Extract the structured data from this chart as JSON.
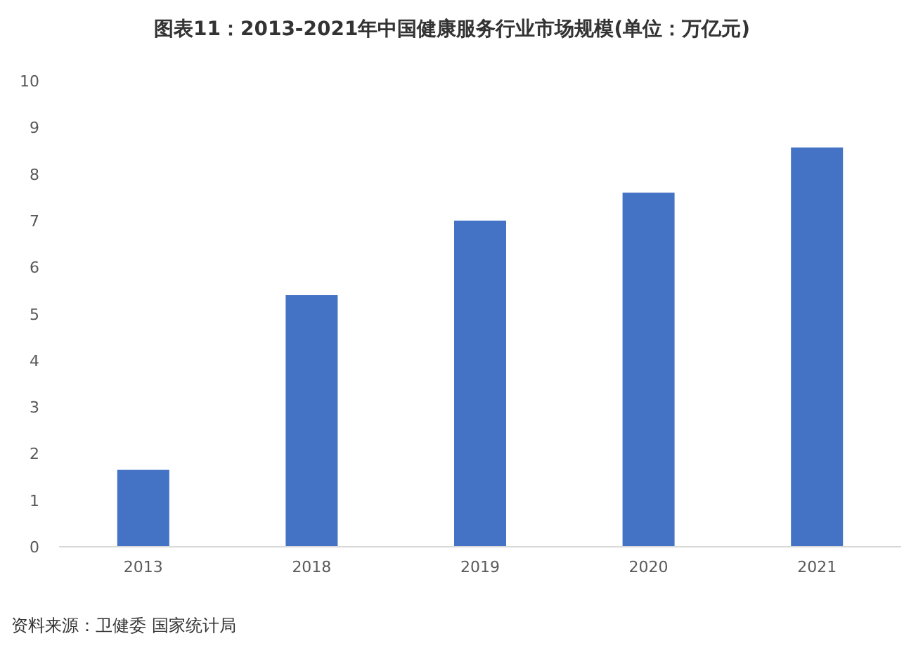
{
  "chart_data": {
    "type": "bar",
    "title": "图表11：2013-2021年中国健康服务行业市场规模(单位：万亿元)",
    "categories": [
      "2013",
      "2018",
      "2019",
      "2020",
      "2021"
    ],
    "values": [
      1.65,
      5.4,
      7.0,
      7.6,
      8.57
    ],
    "color": "#4472c4",
    "ylim": [
      0,
      10
    ],
    "yticks": [
      0,
      1,
      2,
      3,
      4,
      5,
      6,
      7,
      8,
      9,
      10
    ],
    "grid": false,
    "annotations": [
      "资料来源：卫健委 国家统计局"
    ]
  }
}
